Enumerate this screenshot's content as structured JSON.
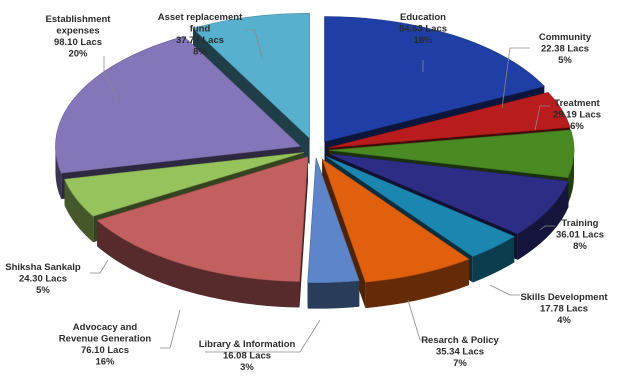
{
  "chart_data": {
    "type": "pie",
    "title": "",
    "exploded": true,
    "three_d": true,
    "series": [
      {
        "key": "education",
        "label_lines": [
          "Education",
          "84.63 Lacs",
          "18%"
        ],
        "value": 84.63,
        "percent": "18%",
        "color": "#1f3fa6"
      },
      {
        "key": "community",
        "label_lines": [
          "Community",
          "22.38 Lacs",
          "5%"
        ],
        "value": 22.38,
        "percent": "5%",
        "color": "#b81c1c"
      },
      {
        "key": "treatment",
        "label_lines": [
          "Treatment",
          "29.19 Lacs",
          "6%"
        ],
        "value": 29.19,
        "percent": "6%",
        "color": "#4a8a22"
      },
      {
        "key": "training",
        "label_lines": [
          "Training",
          "36.01 Lacs",
          "8%"
        ],
        "value": 36.01,
        "percent": "8%",
        "color": "#2e2d86"
      },
      {
        "key": "skills",
        "label_lines": [
          "Skills Development",
          "17.78 Lacs",
          "4%"
        ],
        "value": 17.78,
        "percent": "4%",
        "color": "#1b87b0"
      },
      {
        "key": "research",
        "label_lines": [
          "Resarch & Policy",
          "35.34  Lacs",
          "7%"
        ],
        "value": 35.34,
        "percent": "7%",
        "color": "#e0600e"
      },
      {
        "key": "library",
        "label_lines": [
          "Library & Information",
          "16.08 Lacs",
          "3%"
        ],
        "value": 16.08,
        "percent": "3%",
        "color": "#5c86c9"
      },
      {
        "key": "advocacy",
        "label_lines": [
          "Advocacy and",
          "Revenue Generation",
          "76.10 Lacs",
          "16%"
        ],
        "value": 76.1,
        "percent": "16%",
        "color": "#c2605f"
      },
      {
        "key": "shiksha",
        "label_lines": [
          "Shiksha Sankalp",
          "24.30  Lacs",
          "5%"
        ],
        "value": 24.3,
        "percent": "5%",
        "color": "#96c35c"
      },
      {
        "key": "establishment",
        "label_lines": [
          "Establishment",
          "expenses",
          "98.10 Lacs",
          "20%"
        ],
        "value": 98.1,
        "percent": "20%",
        "color": "#8476b8"
      },
      {
        "key": "asset",
        "label_lines": [
          "Asset replacement",
          "fund",
          "37.72 Lacs",
          "8%"
        ],
        "value": 37.72,
        "percent": "8%",
        "color": "#58b0cf"
      }
    ]
  }
}
